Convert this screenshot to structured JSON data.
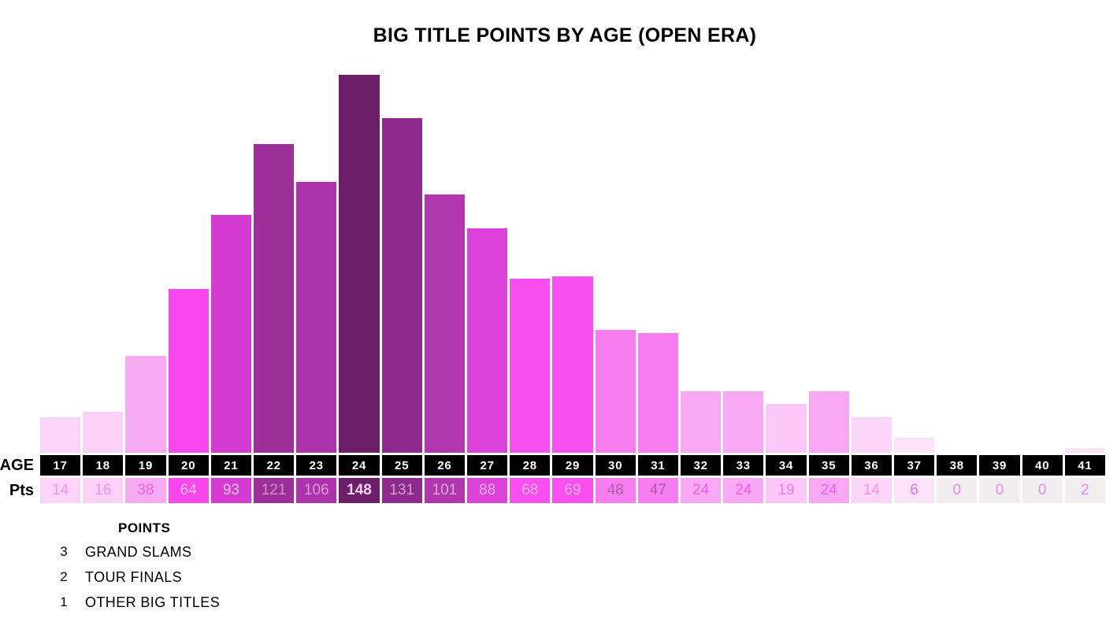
{
  "title": "BIG TITLE POINTS BY AGE (OPEN ERA)",
  "row_labels": {
    "age": "AGE",
    "pts": "Pts"
  },
  "legend": {
    "header": "POINTS",
    "items": [
      {
        "points": "3",
        "label": "GRAND SLAMS"
      },
      {
        "points": "2",
        "label": "TOUR FINALS"
      },
      {
        "points": "1",
        "label": "OTHER BIG TITLES"
      }
    ]
  },
  "colors": {
    "background": "#ffffff",
    "age_row_bg": "#000000",
    "age_row_text": "#ffffff",
    "zero_cell_bg": "#f0eeee",
    "max_bar": "#6d1e69",
    "min_bar": "#fce4f9"
  },
  "chart_data": {
    "type": "bar",
    "title": "BIG TITLE POINTS BY AGE (OPEN ERA)",
    "xlabel": "AGE",
    "ylabel": "Pts",
    "ylim": [
      0,
      148
    ],
    "grid": false,
    "legend_position": "bottom-left",
    "categories": [
      "17",
      "18",
      "19",
      "20",
      "21",
      "22",
      "23",
      "24",
      "25",
      "26",
      "27",
      "28",
      "29",
      "30",
      "31",
      "32",
      "33",
      "34",
      "35",
      "36",
      "37",
      "38",
      "39",
      "40",
      "41"
    ],
    "values": [
      14,
      16,
      38,
      64,
      93,
      121,
      106,
      148,
      131,
      101,
      88,
      68,
      69,
      48,
      47,
      24,
      24,
      19,
      24,
      14,
      6,
      0,
      0,
      0,
      2
    ],
    "bars": [
      {
        "age": "17",
        "pts": 14,
        "bar_color": "#fcd5f8",
        "cell_color": "#fcd5f8",
        "text_color": "#f791ee",
        "bold": false
      },
      {
        "age": "18",
        "pts": 16,
        "bar_color": "#fcd2f8",
        "cell_color": "#fcd2f8",
        "text_color": "#f791ee",
        "bold": false
      },
      {
        "age": "19",
        "pts": 38,
        "bar_color": "#f5aaf1",
        "cell_color": "#f5aaf1",
        "text_color": "#f263e6",
        "bold": false
      },
      {
        "age": "20",
        "pts": 64,
        "bar_color": "#f847ec",
        "cell_color": "#f847ec",
        "text_color": "#fbbdf3",
        "bold": false
      },
      {
        "age": "21",
        "pts": 93,
        "bar_color": "#d53bd0",
        "cell_color": "#d53bd0",
        "text_color": "#f5c2f0",
        "bold": false
      },
      {
        "age": "22",
        "pts": 121,
        "bar_color": "#9c2f97",
        "cell_color": "#9c2f97",
        "text_color": "#d193cc",
        "bold": false
      },
      {
        "age": "23",
        "pts": 106,
        "bar_color": "#ac33ab",
        "cell_color": "#ac33ab",
        "text_color": "#d89cd4",
        "bold": false
      },
      {
        "age": "24",
        "pts": 148,
        "bar_color": "#6d1e69",
        "cell_color": "#6d1e69",
        "text_color": "#f9d3f2",
        "bold": true
      },
      {
        "age": "25",
        "pts": 131,
        "bar_color": "#8e2a8e",
        "cell_color": "#8e2a8e",
        "text_color": "#d49ed1",
        "bold": false
      },
      {
        "age": "26",
        "pts": 101,
        "bar_color": "#b137ae",
        "cell_color": "#b137ae",
        "text_color": "#dca8da",
        "bold": false
      },
      {
        "age": "27",
        "pts": 88,
        "bar_color": "#dc41d8",
        "cell_color": "#dc41d8",
        "text_color": "#f3b3ee",
        "bold": false
      },
      {
        "age": "28",
        "pts": 68,
        "bar_color": "#f94ef0",
        "cell_color": "#f94ef0",
        "text_color": "#fcaff5",
        "bold": false
      },
      {
        "age": "29",
        "pts": 69,
        "bar_color": "#f94ef0",
        "cell_color": "#f94ef0",
        "text_color": "#fcaff5",
        "bold": false
      },
      {
        "age": "30",
        "pts": 48,
        "bar_color": "#f87df1",
        "cell_color": "#f87df1",
        "text_color": "#a75fa3",
        "bold": false
      },
      {
        "age": "31",
        "pts": 47,
        "bar_color": "#f87df1",
        "cell_color": "#f87df1",
        "text_color": "#a75fa3",
        "bold": false
      },
      {
        "age": "32",
        "pts": 24,
        "bar_color": "#f9a9f4",
        "cell_color": "#f9a9f4",
        "text_color": "#f25fe7",
        "bold": false
      },
      {
        "age": "33",
        "pts": 24,
        "bar_color": "#f9a9f4",
        "cell_color": "#f9a9f4",
        "text_color": "#f25fe7",
        "bold": false
      },
      {
        "age": "34",
        "pts": 19,
        "bar_color": "#fbc8f7",
        "cell_color": "#fbc8f7",
        "text_color": "#f57bea",
        "bold": false
      },
      {
        "age": "35",
        "pts": 24,
        "bar_color": "#f9a9f4",
        "cell_color": "#f9a9f4",
        "text_color": "#f25fe7",
        "bold": false
      },
      {
        "age": "36",
        "pts": 14,
        "bar_color": "#fcd5f8",
        "cell_color": "#fcd5f8",
        "text_color": "#f791ee",
        "bold": false
      },
      {
        "age": "37",
        "pts": 6,
        "bar_color": "#fce3fa",
        "cell_color": "#fce3fa",
        "text_color": "#f36fe8",
        "bold": false
      },
      {
        "age": "38",
        "pts": 0,
        "bar_color": null,
        "cell_color": "#f0eeee",
        "text_color": "#f782ef",
        "bold": false
      },
      {
        "age": "39",
        "pts": 0,
        "bar_color": null,
        "cell_color": "#f0eeee",
        "text_color": "#f782ef",
        "bold": false
      },
      {
        "age": "40",
        "pts": 0,
        "bar_color": null,
        "cell_color": "#f0eeee",
        "text_color": "#f782ef",
        "bold": false
      },
      {
        "age": "41",
        "pts": 2,
        "bar_color": "#fce4f9",
        "cell_color": "#f0eeee",
        "text_color": "#f782ef",
        "bold": false
      }
    ]
  }
}
